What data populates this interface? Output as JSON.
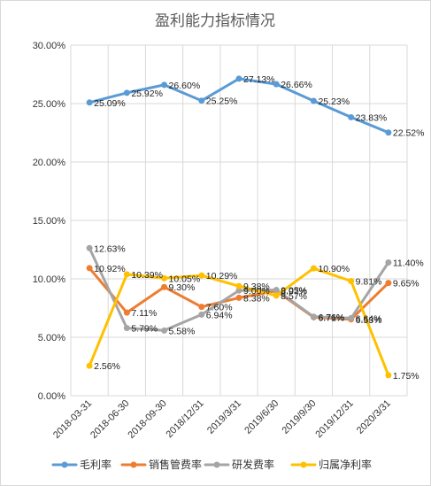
{
  "chart_data": {
    "type": "line",
    "title": "盈利能力指标情况",
    "xlabel": "",
    "ylabel": "",
    "categories": [
      "2018-03-31",
      "2018-06-30",
      "2018-09-30",
      "2018/12/31",
      "2019/3/31",
      "2019/6/30",
      "2019/9/30",
      "2019/12/31",
      "2020/3/31"
    ],
    "y_ticks": [
      "0.00%",
      "5.00%",
      "10.00%",
      "15.00%",
      "20.00%",
      "25.00%",
      "30.00%"
    ],
    "ylim": [
      0,
      30
    ],
    "grid": true,
    "legend_position": "bottom",
    "series": [
      {
        "name": "毛利率",
        "color": "#5b9bd5",
        "values": [
          25.09,
          25.92,
          26.6,
          25.25,
          27.13,
          26.66,
          25.23,
          23.83,
          22.52
        ],
        "labels": [
          "25.09%",
          "25.92%",
          "26.60%",
          "25.25%",
          "27.13%",
          "26.66%",
          "25.23%",
          "23.83%",
          "22.52%"
        ]
      },
      {
        "name": "销售管费率",
        "color": "#ed7d31",
        "values": [
          10.92,
          7.11,
          9.3,
          7.6,
          8.38,
          8.97,
          6.71,
          6.53,
          9.65
        ],
        "labels": [
          "10.92%",
          "7.11%",
          "9.30%",
          "7.60%",
          "8.38%",
          "8.97%",
          "6.71%",
          "6.53%",
          "9.65%"
        ]
      },
      {
        "name": "研发费率",
        "color": "#a5a5a5",
        "values": [
          12.63,
          5.79,
          5.58,
          6.94,
          9.0,
          9.05,
          6.76,
          6.64,
          11.4
        ],
        "labels": [
          "12.63%",
          "5.79%",
          "5.58%",
          "6.94%",
          "9.00%",
          "9.05%",
          "6.76%",
          "6.64%",
          "11.40%"
        ]
      },
      {
        "name": "归属净利率",
        "color": "#ffc000",
        "values": [
          2.56,
          10.39,
          10.05,
          10.29,
          9.38,
          8.57,
          10.9,
          9.81,
          1.75
        ],
        "labels": [
          "2.56%",
          "10.39%",
          "10.05%",
          "10.29%",
          "9.38%",
          "8.57%",
          "10.90%",
          "9.81%",
          "1.75%"
        ]
      }
    ]
  }
}
